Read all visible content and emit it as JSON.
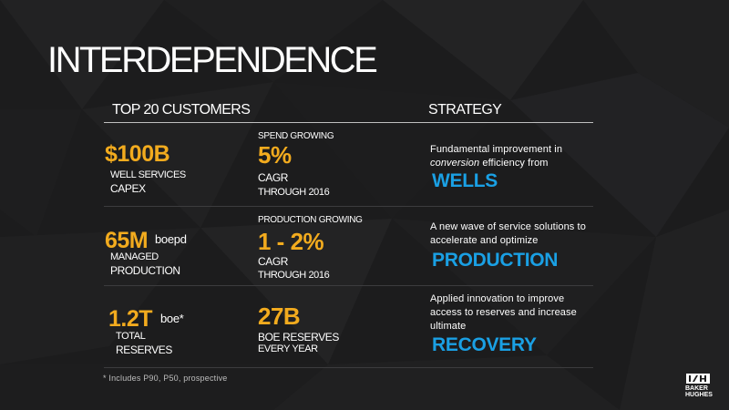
{
  "title": "INTERDEPENDENCE",
  "headers": {
    "customers": "TOP 20 CUSTOMERS",
    "strategy": "STRATEGY"
  },
  "rows": [
    {
      "metric_value": "$100B",
      "metric_unit": "",
      "metric_label_1": "WELL SERVICES",
      "metric_label_2": "CAPEX",
      "growth_heading": "SPEND GROWING",
      "growth_value": "5%",
      "growth_label_1": "CAGR",
      "growth_label_2": "THROUGH 2016",
      "strategy_text_before": "Fundamental improvement in ",
      "strategy_text_emph": "conversion",
      "strategy_text_after": " efficiency from",
      "strategy_word": "WELLS"
    },
    {
      "metric_value": "65M",
      "metric_unit": "boepd",
      "metric_label_1": "MANAGED",
      "metric_label_2": "PRODUCTION",
      "growth_heading": "PRODUCTION GROWING",
      "growth_value": "1 - 2%",
      "growth_label_1": "CAGR",
      "growth_label_2": "THROUGH 2016",
      "strategy_text": "A new wave of service solutions to accelerate and optimize",
      "strategy_word": "PRODUCTION"
    },
    {
      "metric_value": "1.2T",
      "metric_unit": "boe*",
      "metric_label_1": "TOTAL",
      "metric_label_2": "RESERVES",
      "growth_value": "27B",
      "growth_label_1": "BOE RESERVES",
      "growth_label_2": "EVERY YEAR",
      "strategy_text": "Applied innovation to improve access to reserves and increase ultimate",
      "strategy_word": "RECOVERY"
    }
  ],
  "footnote": "* Includes P90, P50, prospective",
  "logo": {
    "line1": "BAKER",
    "line2": "HUGHES",
    "icon": "baker-hughes-logo-icon"
  },
  "colors": {
    "accent_yellow": "#f2ab1e",
    "accent_blue": "#1aa0e4",
    "background": "#1b1b1c"
  }
}
